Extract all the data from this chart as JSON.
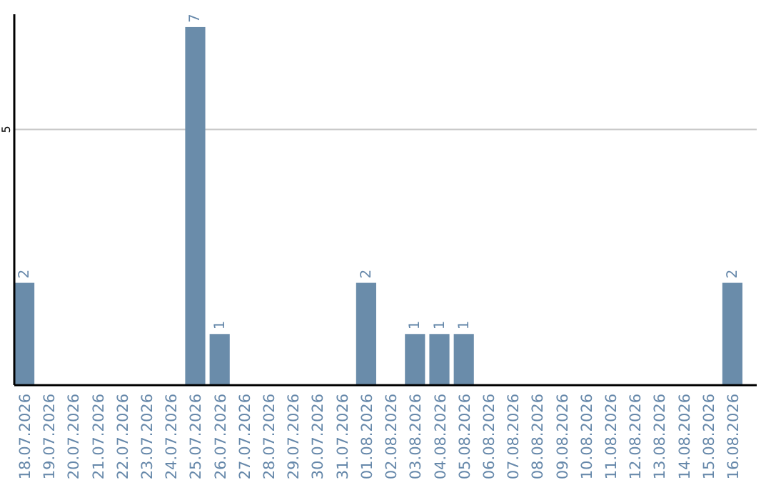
{
  "chart_data": {
    "type": "bar",
    "categories": [
      "18.07.2026",
      "19.07.2026",
      "20.07.2026",
      "21.07.2026",
      "22.07.2026",
      "23.07.2026",
      "24.07.2026",
      "25.07.2026",
      "26.07.2026",
      "27.07.2026",
      "28.07.2026",
      "29.07.2026",
      "30.07.2026",
      "31.07.2026",
      "01.08.2026",
      "02.08.2026",
      "03.08.2026",
      "04.08.2026",
      "05.08.2026",
      "06.08.2026",
      "07.08.2026",
      "08.08.2026",
      "09.08.2026",
      "10.08.2026",
      "11.08.2026",
      "12.08.2026",
      "13.08.2026",
      "14.08.2026",
      "15.08.2026",
      "16.08.2026"
    ],
    "values": [
      2,
      0,
      0,
      0,
      0,
      0,
      0,
      7,
      1,
      0,
      0,
      0,
      0,
      0,
      2,
      0,
      1,
      1,
      1,
      0,
      0,
      0,
      0,
      0,
      0,
      0,
      0,
      0,
      0,
      2
    ],
    "value_labels": [
      "2",
      null,
      null,
      null,
      null,
      null,
      null,
      "7",
      "1",
      null,
      null,
      null,
      null,
      null,
      "2",
      null,
      "1",
      "1",
      "1",
      null,
      null,
      null,
      null,
      null,
      null,
      null,
      null,
      null,
      null,
      "2"
    ],
    "color": "#6a8caa",
    "ylim": [
      0,
      7.25
    ],
    "yticks": [
      5
    ],
    "grid": "y"
  }
}
